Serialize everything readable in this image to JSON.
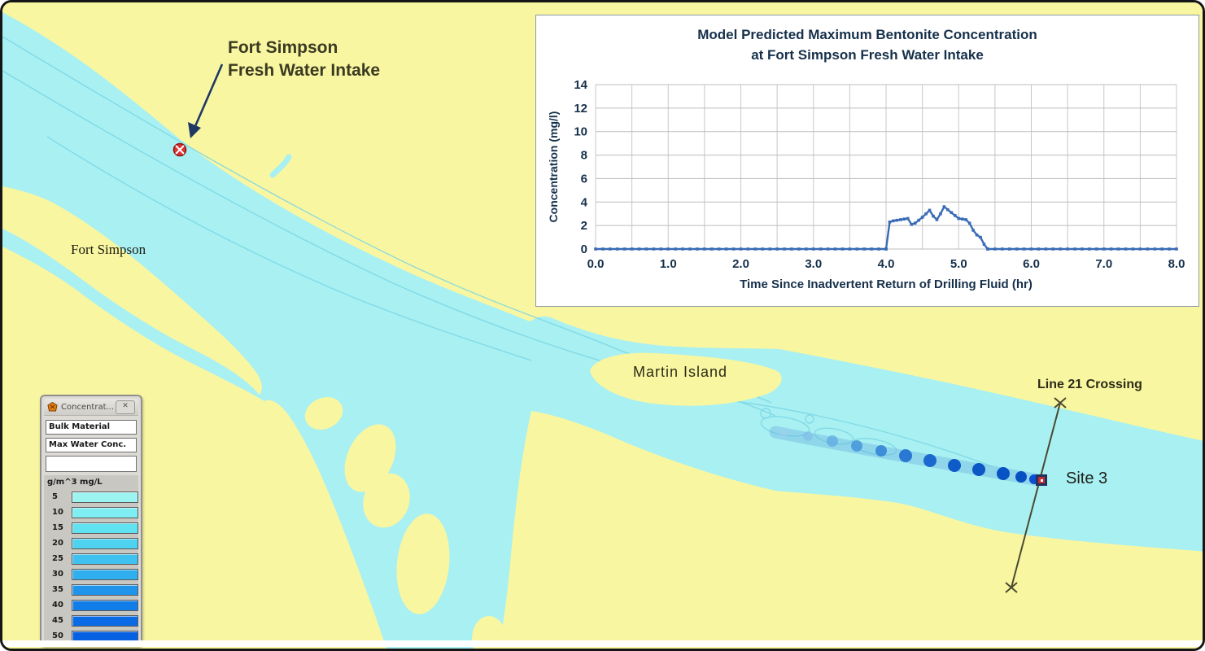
{
  "map": {
    "labels": {
      "intake_line1": "Fort Simpson",
      "intake_line2": "Fresh Water Intake",
      "town": "Fort Simpson",
      "island": "Martin Island",
      "crossing": "Line 21 Crossing",
      "site": "Site 3"
    },
    "colors": {
      "land": "#F9F6A1",
      "water": "#A8F0F2",
      "contour": "#7CD6E4",
      "plume_dark": "#0B50D0",
      "arrow": "#1F3864",
      "intake_marker": "#E03030",
      "survey_line": "#4a4a30"
    }
  },
  "legend_window": {
    "title": "Concentrat...",
    "close_label": "✕",
    "fields": [
      "Bulk Material",
      "Max Water Conc.",
      ""
    ],
    "units_label": "g/m^3 mg/L",
    "entries": [
      {
        "value": "5",
        "color": "#9BF4F0"
      },
      {
        "value": "10",
        "color": "#7FEEF2"
      },
      {
        "value": "15",
        "color": "#60E2F0"
      },
      {
        "value": "20",
        "color": "#4FD2F0"
      },
      {
        "value": "25",
        "color": "#3FC1F0"
      },
      {
        "value": "30",
        "color": "#2FAFEE"
      },
      {
        "value": "35",
        "color": "#2094EB"
      },
      {
        "value": "40",
        "color": "#117DE8"
      },
      {
        "value": "45",
        "color": "#0A6BE4"
      },
      {
        "value": "50",
        "color": "#0560E2"
      }
    ]
  },
  "chart_data": {
    "type": "line",
    "title_line1": "Model Predicted Maximum Bentonite Concentration",
    "title_line2": "at Fort Simpson Fresh Water Intake",
    "xlabel": "Time Since Inadvertent Return of Drilling Fluid (hr)",
    "ylabel": "Concentration (mg/l)",
    "xlim": [
      0,
      8
    ],
    "ylim": [
      0,
      14
    ],
    "x_ticks": [
      "0.0",
      "1.0",
      "2.0",
      "3.0",
      "4.0",
      "5.0",
      "6.0",
      "7.0",
      "8.0"
    ],
    "y_ticks": [
      0,
      2,
      4,
      6,
      8,
      10,
      12,
      14
    ],
    "x_gridline_step": 0.5,
    "grid": true,
    "legend_position": "none",
    "line_color": "#3A6BB5",
    "baseline_segments": [
      [
        0.0,
        4.0
      ],
      [
        5.4,
        8.0
      ]
    ],
    "baseline_value": 0,
    "baseline_marker_step": 0.1,
    "peak_points": [
      [
        4.0,
        0.0
      ],
      [
        4.05,
        2.3
      ],
      [
        4.1,
        2.4
      ],
      [
        4.15,
        2.45
      ],
      [
        4.2,
        2.5
      ],
      [
        4.25,
        2.55
      ],
      [
        4.3,
        2.6
      ],
      [
        4.35,
        2.1
      ],
      [
        4.4,
        2.2
      ],
      [
        4.45,
        2.45
      ],
      [
        4.5,
        2.7
      ],
      [
        4.55,
        3.0
      ],
      [
        4.6,
        3.3
      ],
      [
        4.65,
        2.8
      ],
      [
        4.7,
        2.5
      ],
      [
        4.75,
        3.0
      ],
      [
        4.8,
        3.6
      ],
      [
        4.85,
        3.35
      ],
      [
        4.9,
        3.1
      ],
      [
        4.95,
        2.85
      ],
      [
        5.0,
        2.6
      ],
      [
        5.05,
        2.55
      ],
      [
        5.1,
        2.5
      ],
      [
        5.15,
        2.2
      ],
      [
        5.2,
        1.6
      ],
      [
        5.25,
        1.2
      ],
      [
        5.3,
        1.0
      ],
      [
        5.35,
        0.4
      ],
      [
        5.4,
        0.0
      ]
    ]
  }
}
